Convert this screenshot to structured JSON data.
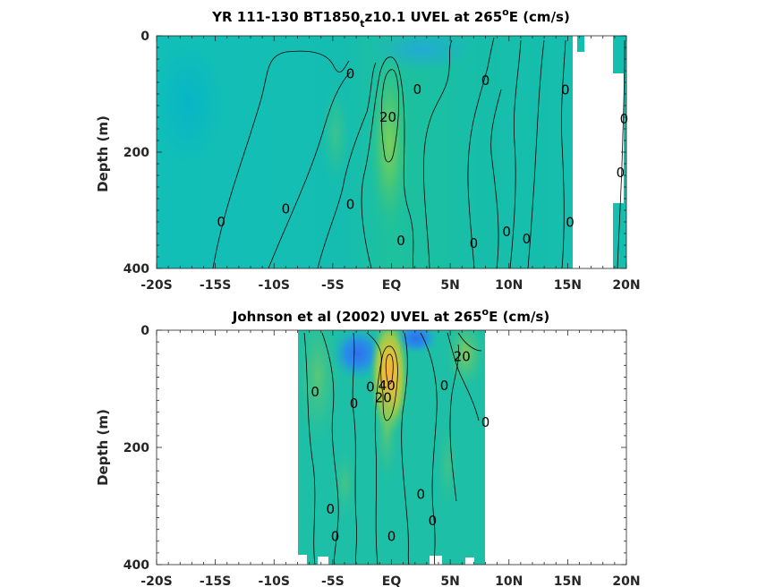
{
  "chart_data": [
    {
      "type": "heatmap",
      "title_main": "YR 111-130 BT1850",
      "title_sub": "t",
      "title_tail": "z10.1 UVEL at 265",
      "title_sup": "o",
      "title_end": "E (cm/s)",
      "xlabel": "",
      "ylabel": "Depth (m)",
      "xlim": [
        -20,
        20
      ],
      "ylim": [
        0,
        400
      ],
      "x_ticks": [
        -20,
        -15,
        -10,
        -5,
        0,
        5,
        10,
        15,
        20
      ],
      "x_tick_labels": [
        "-20S",
        "-15S",
        "-10S",
        "-5S",
        "EQ",
        "5N",
        "10N",
        "15N",
        "20N"
      ],
      "y_ticks": [
        0,
        200,
        400
      ],
      "y_tick_labels": [
        "0",
        "200",
        "400"
      ],
      "data_extent_lon": [
        -20,
        20
      ],
      "contour_labels": [
        {
          "text": "0",
          "lat": -3.5,
          "depth": 65
        },
        {
          "text": "0",
          "lat": 2.2,
          "depth": 92
        },
        {
          "text": "0",
          "lat": 8.0,
          "depth": 77
        },
        {
          "text": "0",
          "lat": 14.8,
          "depth": 93
        },
        {
          "text": "0",
          "lat": 19.8,
          "depth": 143
        },
        {
          "text": "0",
          "lat": 19.5,
          "depth": 235
        },
        {
          "text": "20",
          "lat": -0.3,
          "depth": 140
        },
        {
          "text": "0",
          "lat": -14.5,
          "depth": 320
        },
        {
          "text": "0",
          "lat": -9.0,
          "depth": 298
        },
        {
          "text": "0",
          "lat": -3.5,
          "depth": 290
        },
        {
          "text": "0",
          "lat": 0.8,
          "depth": 352
        },
        {
          "text": "0",
          "lat": 7.0,
          "depth": 357
        },
        {
          "text": "0",
          "lat": 9.8,
          "depth": 337
        },
        {
          "text": "0",
          "lat": 11.5,
          "depth": 349
        },
        {
          "text": "0",
          "lat": 15.2,
          "depth": 321
        }
      ]
    },
    {
      "type": "heatmap",
      "title_main": "Johnson et al (2002) UVEL at 265",
      "title_sup": "o",
      "title_end": "E (cm/s)",
      "xlabel": "",
      "ylabel": "Depth (m)",
      "xlim": [
        -20,
        20
      ],
      "ylim": [
        0,
        400
      ],
      "x_ticks": [
        -20,
        -15,
        -10,
        -5,
        0,
        5,
        10,
        15,
        20
      ],
      "x_tick_labels": [
        "-20S",
        "-15S",
        "-10S",
        "-5S",
        "EQ",
        "5N",
        "10N",
        "15N",
        "20N"
      ],
      "y_ticks": [
        0,
        200,
        400
      ],
      "y_tick_labels": [
        "0",
        "200",
        "400"
      ],
      "data_extent_lon": [
        -8,
        8
      ],
      "contour_labels": [
        {
          "text": "20",
          "lat": 6.0,
          "depth": 45
        },
        {
          "text": "0",
          "lat": -6.5,
          "depth": 105
        },
        {
          "text": "0",
          "lat": -3.2,
          "depth": 125
        },
        {
          "text": "0",
          "lat": -1.8,
          "depth": 97
        },
        {
          "text": "40",
          "lat": -0.4,
          "depth": 95
        },
        {
          "text": "20",
          "lat": -0.7,
          "depth": 115
        },
        {
          "text": "0",
          "lat": 4.5,
          "depth": 95
        },
        {
          "text": "0",
          "lat": 8.0,
          "depth": 157
        },
        {
          "text": "0",
          "lat": 2.5,
          "depth": 280
        },
        {
          "text": "0",
          "lat": -5.2,
          "depth": 305
        },
        {
          "text": "0",
          "lat": 3.5,
          "depth": 325
        },
        {
          "text": "0",
          "lat": -4.8,
          "depth": 352
        },
        {
          "text": "0",
          "lat": 0.0,
          "depth": 352
        }
      ]
    }
  ]
}
